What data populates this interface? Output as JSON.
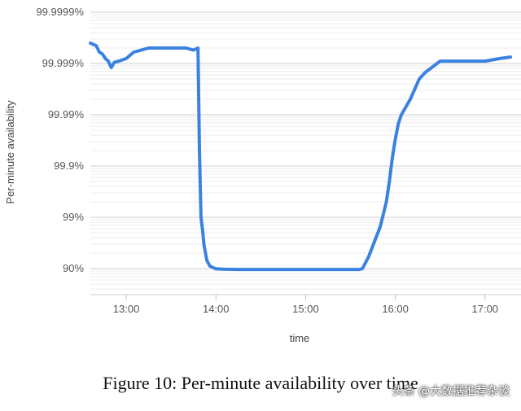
{
  "chart_data": {
    "type": "line",
    "title": "",
    "xlabel": "time",
    "ylabel": "Per-minute availability",
    "y_scale": "nines (log of unavailability)",
    "x_ticks": [
      "13:00",
      "14:00",
      "15:00",
      "16:00",
      "17:00"
    ],
    "y_ticks": [
      "90%",
      "99%",
      "99.9%",
      "99.99%",
      "99.999%",
      "99.9999%"
    ],
    "xlim": [
      "12:36",
      "17:17"
    ],
    "ylim": [
      "88%",
      "99.9999%"
    ],
    "grid": true,
    "legend": "none",
    "line_color": "#3b82e0",
    "series": [
      {
        "x": [
          "12:36",
          "12:40",
          "12:42",
          "12:44",
          "12:46",
          "12:48",
          "12:50",
          "12:52",
          "12:55",
          "13:00",
          "13:05",
          "13:10",
          "13:15",
          "13:20",
          "13:25",
          "13:30",
          "13:35",
          "13:40",
          "13:45",
          "13:48",
          "13:49",
          "13:50",
          "13:51",
          "13:52",
          "13:54",
          "13:56",
          "14:00",
          "14:05",
          "14:15",
          "14:30",
          "14:45",
          "15:00",
          "15:15",
          "15:30",
          "15:36",
          "15:38",
          "15:42",
          "15:46",
          "15:50",
          "15:54",
          "15:56",
          "15:58",
          "16:00",
          "16:02",
          "16:04",
          "16:06",
          "16:10",
          "16:16",
          "16:20",
          "16:30",
          "16:40",
          "16:50",
          "17:00",
          "17:10",
          "17:17"
        ],
        "y": [
          "99.9996%",
          "99.99955%",
          "99.9994%",
          "99.99935%",
          "99.9992%",
          "99.9991%",
          "99.9988%",
          "99.99905%",
          "99.9991%",
          "99.9992%",
          "99.9994%",
          "99.99945%",
          "99.9995%",
          "99.9995%",
          "99.9995%",
          "99.9995%",
          "99.9995%",
          "99.9995%",
          "99.99945%",
          "99.9995%",
          "99.95%",
          "99%",
          "98.3%",
          "96.5%",
          "93%",
          "91%",
          "89.9%",
          "89.7%",
          "89.6%",
          "89.6%",
          "89.6%",
          "89.6%",
          "89.6%",
          "89.6%",
          "89.6%",
          "90%",
          "94%",
          "97%",
          "98.5%",
          "99.5%",
          "99.8%",
          "99.93%",
          "99.97%",
          "99.985%",
          "99.99%",
          "99.992%",
          "99.995%",
          "99.998%",
          "99.9985%",
          "99.9991%",
          "99.9991%",
          "99.9991%",
          "99.9991%",
          "99.9992%",
          "99.99925%"
        ]
      }
    ]
  },
  "caption": "Figure 10: Per-minute availability over time",
  "watermark": "头条 @大数据推荐杂谈"
}
